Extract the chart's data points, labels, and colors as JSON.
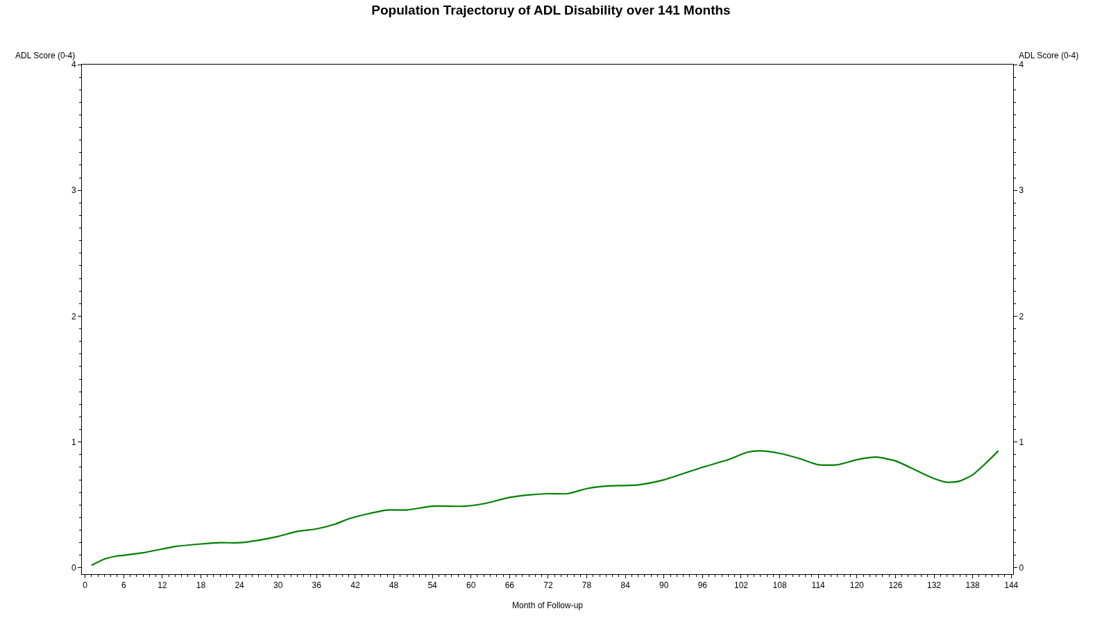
{
  "chart_data": {
    "type": "line",
    "title": "Population Trajectoruy of ADL Disability over 141 Months",
    "xlabel": "Month of Follow-up",
    "ylabel": "ADL Score (0-4)",
    "y2label": "ADL Score (0-4)",
    "xlim": [
      -0.5,
      144.3
    ],
    "xticks": [
      0,
      6,
      12,
      18,
      24,
      30,
      36,
      42,
      48,
      54,
      60,
      66,
      72,
      78,
      84,
      90,
      96,
      102,
      108,
      114,
      120,
      126,
      132,
      138,
      144
    ],
    "ylim": [
      -0.05,
      4
    ],
    "yticks": [
      0,
      1,
      2,
      3,
      4
    ],
    "y2lim": [
      -0.05,
      4
    ],
    "y2ticks": [
      0,
      1,
      2,
      3,
      4
    ],
    "line_style": "solid",
    "marker": "none",
    "series": [
      {
        "color": "#008000",
        "x": [
          1,
          3,
          5,
          6,
          9,
          12,
          14,
          18,
          21,
          24,
          27,
          30,
          33,
          36,
          39,
          41,
          44,
          47,
          50,
          54,
          59,
          62,
          66,
          69,
          72,
          75,
          78,
          81,
          86,
          90,
          96,
          100,
          103,
          105,
          108,
          111,
          114,
          117,
          120,
          123,
          126,
          129,
          132,
          134,
          136,
          138,
          140,
          142
        ],
        "values": [
          0.02,
          0.07,
          0.095,
          0.1,
          0.12,
          0.15,
          0.17,
          0.19,
          0.2,
          0.2,
          0.22,
          0.25,
          0.29,
          0.31,
          0.35,
          0.39,
          0.43,
          0.46,
          0.46,
          0.49,
          0.49,
          0.51,
          0.56,
          0.58,
          0.59,
          0.59,
          0.63,
          0.65,
          0.66,
          0.7,
          0.8,
          0.86,
          0.92,
          0.93,
          0.91,
          0.87,
          0.82,
          0.82,
          0.86,
          0.88,
          0.85,
          0.78,
          0.71,
          0.68,
          0.69,
          0.74,
          0.83,
          0.93
        ]
      }
    ]
  }
}
